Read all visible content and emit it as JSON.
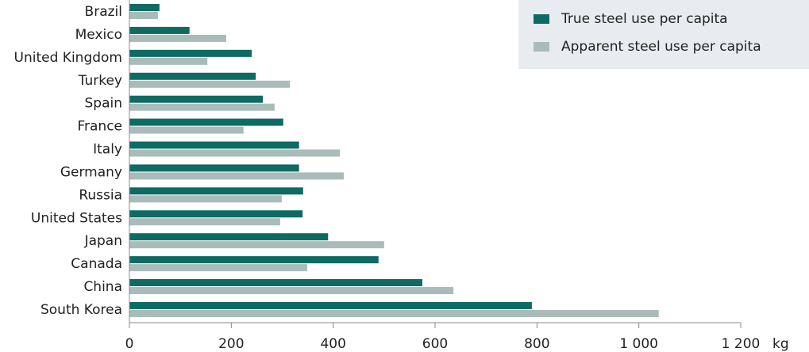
{
  "chart_data": {
    "type": "hbar",
    "categories": [
      "Brazil",
      "Mexico",
      "United Kingdom",
      "Turkey",
      "Spain",
      "France",
      "Italy",
      "Germany",
      "Russia",
      "United States",
      "Japan",
      "Canada",
      "China",
      "South Korea"
    ],
    "series": [
      {
        "name": "True steel use per capita",
        "color": "#0e6b63",
        "values": [
          59,
          118,
          240,
          248,
          262,
          302,
          333,
          333,
          341,
          340,
          390,
          489,
          575,
          790
        ]
      },
      {
        "name": "Apparent steel use per capita",
        "color": "#a9bcb9",
        "values": [
          56,
          190,
          153,
          315,
          285,
          224,
          413,
          421,
          299,
          296,
          500,
          349,
          636,
          1039
        ]
      }
    ],
    "xlabel": "kg",
    "xlim": [
      0,
      1200
    ],
    "xticks": [
      0,
      200,
      400,
      600,
      800,
      {
        "value": 1000,
        "label": "1 000"
      },
      {
        "value": 1200,
        "label": "1 200"
      }
    ],
    "legend": "upper right"
  }
}
